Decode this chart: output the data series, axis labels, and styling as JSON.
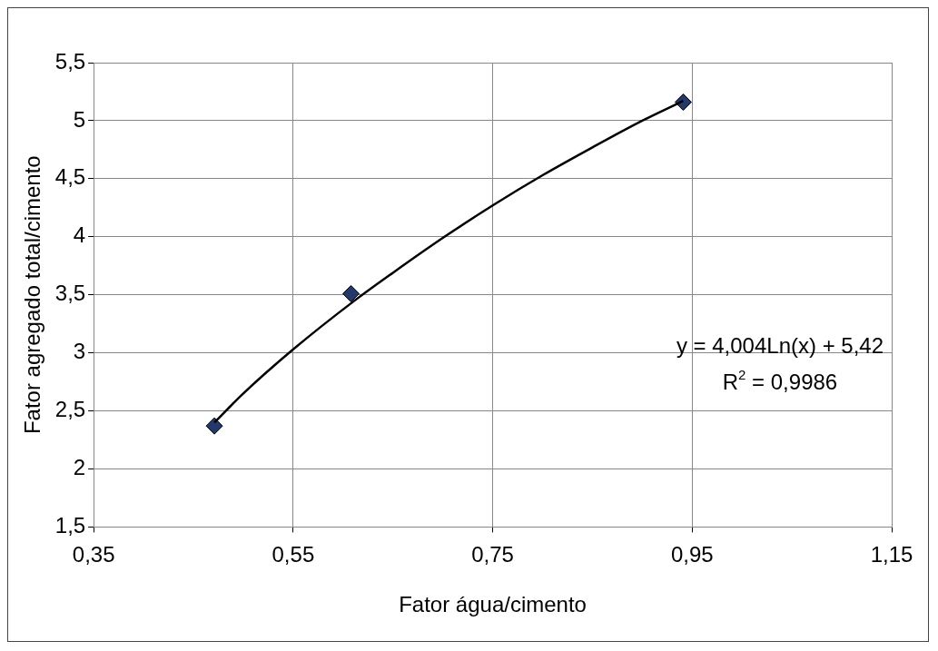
{
  "chart_data": {
    "type": "scatter",
    "xlabel": "Fator água/cimento",
    "ylabel": "Fator agregado total/cimento",
    "xlim": [
      0.35,
      1.15
    ],
    "xticks": [
      {
        "value": 0.35,
        "label": "0,35"
      },
      {
        "value": 0.55,
        "label": "0,55"
      },
      {
        "value": 0.75,
        "label": "0,75"
      },
      {
        "value": 0.95,
        "label": "0,95"
      },
      {
        "value": 1.15,
        "label": "1,15"
      }
    ],
    "ylim": [
      1.5,
      5.5
    ],
    "yticks": [
      {
        "value": 1.5,
        "label": "1,5"
      },
      {
        "value": 2,
        "label": "2"
      },
      {
        "value": 2.5,
        "label": "2,5"
      },
      {
        "value": 3,
        "label": "3"
      },
      {
        "value": 3.5,
        "label": "3,5"
      },
      {
        "value": 4,
        "label": "4"
      },
      {
        "value": 4.5,
        "label": "4,5"
      },
      {
        "value": 5,
        "label": "5"
      },
      {
        "value": 5.5,
        "label": "5,5"
      }
    ],
    "grid": true,
    "legend": false,
    "series": [
      {
        "type": "line",
        "color": "#000000",
        "marker": "none",
        "x": [
          0.471,
          0.5,
          0.55,
          0.61,
          0.65,
          0.7,
          0.75,
          0.8,
          0.85,
          0.9,
          0.941
        ],
        "values": [
          2.4,
          2.65,
          3.03,
          3.44,
          3.69,
          3.99,
          4.27,
          4.53,
          4.77,
          5.0,
          5.17
        ]
      },
      {
        "color": "#24386b",
        "marker": "diamond",
        "x": [
          0.471,
          0.608,
          0.941
        ],
        "values": [
          2.37,
          3.51,
          5.16
        ]
      }
    ],
    "annotations": [
      "y = 4,004Ln(x) + 5,42",
      "R$^{2}$ = 0,9986"
    ]
  }
}
